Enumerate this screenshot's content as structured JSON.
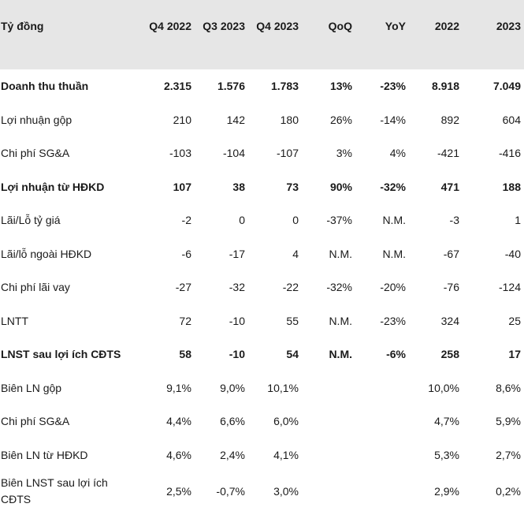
{
  "table": {
    "headers": [
      "Tỷ đồng",
      "Q4 2022",
      "Q3 2023",
      "Q4 2023",
      "QoQ",
      "YoY",
      "2022",
      "2023"
    ],
    "rows": [
      {
        "label": "Doanh thu thuần",
        "bold": true,
        "cells": [
          "2.315",
          "1.576",
          "1.783",
          "13%",
          "-23%",
          "8.918",
          "7.049"
        ]
      },
      {
        "label": "Lợi nhuận gộp",
        "bold": false,
        "cells": [
          "210",
          "142",
          "180",
          "26%",
          "-14%",
          "892",
          "604"
        ]
      },
      {
        "label": "Chi phí SG&A",
        "bold": false,
        "cells": [
          "-103",
          "-104",
          "-107",
          "3%",
          "4%",
          "-421",
          "-416"
        ]
      },
      {
        "label": "Lợi nhuận từ HĐKD",
        "bold": true,
        "cells": [
          "107",
          "38",
          "73",
          "90%",
          "-32%",
          "471",
          "188"
        ]
      },
      {
        "label": "Lãi/Lỗ tỷ giá",
        "bold": false,
        "cells": [
          "-2",
          "0",
          "0",
          "-37%",
          "N.M.",
          "-3",
          "1"
        ]
      },
      {
        "label": "Lãi/lỗ ngoài HĐKD",
        "bold": false,
        "cells": [
          "-6",
          "-17",
          "4",
          "N.M.",
          "N.M.",
          "-67",
          "-40"
        ]
      },
      {
        "label": "Chi phí lãi vay",
        "bold": false,
        "cells": [
          "-27",
          "-32",
          "-22",
          "-32%",
          "-20%",
          "-76",
          "-124"
        ]
      },
      {
        "label": "LNTT",
        "bold": false,
        "cells": [
          "72",
          "-10",
          "55",
          "N.M.",
          "-23%",
          "324",
          "25"
        ]
      },
      {
        "label": "LNST sau lợi ích CĐTS",
        "bold": true,
        "cells": [
          "58",
          "-10",
          "54",
          "N.M.",
          "-6%",
          "258",
          "17"
        ]
      },
      {
        "label": "Biên LN gộp",
        "bold": false,
        "cells": [
          "9,1%",
          "9,0%",
          "10,1%",
          "",
          "",
          "10,0%",
          "8,6%"
        ]
      },
      {
        "label": "Chi phí SG&A",
        "bold": false,
        "cells": [
          "4,4%",
          "6,6%",
          "6,0%",
          "",
          "",
          "4,7%",
          "5,9%"
        ]
      },
      {
        "label": "Biên LN từ HĐKD",
        "bold": false,
        "cells": [
          "4,6%",
          "2,4%",
          "4,1%",
          "",
          "",
          "5,3%",
          "2,7%"
        ]
      },
      {
        "label": "Biên LNST sau lợi ích CĐTS",
        "bold": false,
        "cells": [
          "2,5%",
          "-0,7%",
          "3,0%",
          "",
          "",
          "2,9%",
          "0,2%"
        ]
      }
    ]
  }
}
